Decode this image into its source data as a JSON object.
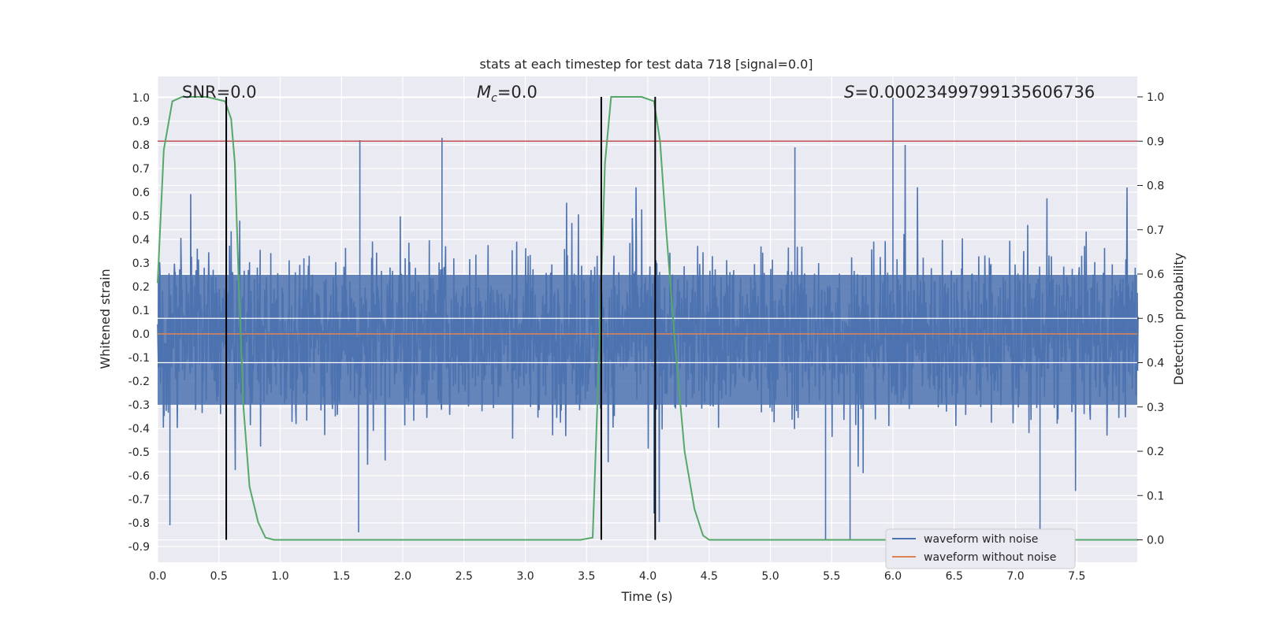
{
  "chart_data": {
    "type": "line",
    "title": "stats at each timestep for test data 718 [signal=0.0]",
    "xlabel": "Time (s)",
    "ylabel": "Whitened strain",
    "y2label": "Detection probability",
    "xlim": [
      0.0,
      8.0
    ],
    "ylim": [
      -0.95,
      1.08
    ],
    "y2lim": [
      -0.05,
      1.05
    ],
    "x_ticks": [
      "0.0",
      "0.5",
      "1.0",
      "1.5",
      "2.0",
      "2.5",
      "3.0",
      "3.5",
      "4.0",
      "4.5",
      "5.0",
      "5.5",
      "6.0",
      "6.5",
      "7.0",
      "7.5"
    ],
    "y_ticks": [
      "1.0",
      "0.9",
      "0.8",
      "0.7",
      "0.6",
      "0.5",
      "0.4",
      "0.3",
      "0.2",
      "0.1",
      "0.0",
      "-0.1",
      "-0.2",
      "-0.3",
      "-0.4",
      "-0.5",
      "-0.6",
      "-0.7",
      "-0.8",
      "-0.9"
    ],
    "y2_ticks": [
      "1.0",
      "0.9",
      "0.8",
      "0.7",
      "0.6",
      "0.5",
      "0.4",
      "0.3",
      "0.2",
      "0.1",
      "0.0"
    ],
    "annotations": {
      "snr": "SNR=0.0",
      "mc_symbol": "M",
      "mc_sub": "c",
      "mc_value": "=0.0",
      "s_symbol": "S",
      "s_value": "=0.00023499799135606736"
    },
    "series": [
      {
        "name": "waveform with noise",
        "color": "#4c72b0",
        "description": "dense noise, envelope approx ±0.5 with spikes",
        "spike_points": [
          [
            0.56,
            0.99
          ],
          [
            1.65,
            0.82
          ],
          [
            2.32,
            0.83
          ],
          [
            6.0,
            1.0
          ],
          [
            5.2,
            0.79
          ],
          [
            0.1,
            -0.81
          ],
          [
            1.64,
            -0.84
          ],
          [
            5.45,
            -0.87
          ],
          [
            5.65,
            -0.87
          ],
          [
            7.2,
            -0.86
          ],
          [
            4.05,
            -0.76
          ]
        ]
      },
      {
        "name": "waveform without noise",
        "color": "#dd8452",
        "y": 0.0
      },
      {
        "name": "detection probability",
        "color": "#55a868",
        "axis": "right",
        "points": [
          [
            0.0,
            0.58
          ],
          [
            0.05,
            0.88
          ],
          [
            0.12,
            0.99
          ],
          [
            0.2,
            1.0
          ],
          [
            0.4,
            1.0
          ],
          [
            0.55,
            0.99
          ],
          [
            0.6,
            0.95
          ],
          [
            0.63,
            0.85
          ],
          [
            0.66,
            0.6
          ],
          [
            0.7,
            0.3
          ],
          [
            0.75,
            0.12
          ],
          [
            0.82,
            0.04
          ],
          [
            0.88,
            0.005
          ],
          [
            0.95,
            0.0
          ],
          [
            3.45,
            0.0
          ],
          [
            3.55,
            0.005
          ],
          [
            3.6,
            0.4
          ],
          [
            3.65,
            0.85
          ],
          [
            3.7,
            1.0
          ],
          [
            3.95,
            1.0
          ],
          [
            4.05,
            0.99
          ],
          [
            4.1,
            0.9
          ],
          [
            4.15,
            0.7
          ],
          [
            4.22,
            0.45
          ],
          [
            4.3,
            0.2
          ],
          [
            4.38,
            0.07
          ],
          [
            4.45,
            0.01
          ],
          [
            4.5,
            0.0
          ],
          [
            8.0,
            0.0
          ]
        ]
      }
    ],
    "threshold": {
      "color": "#c44e52",
      "value": 0.9,
      "axis": "right"
    },
    "vlines": [
      0.56,
      3.62,
      4.06
    ],
    "legend": {
      "placement": "bottom-right",
      "items": [
        {
          "label": "waveform with noise",
          "color": "#4c72b0"
        },
        {
          "label": "waveform without noise",
          "color": "#dd8452"
        }
      ]
    },
    "grid": true,
    "background": "#eaeaf2"
  }
}
